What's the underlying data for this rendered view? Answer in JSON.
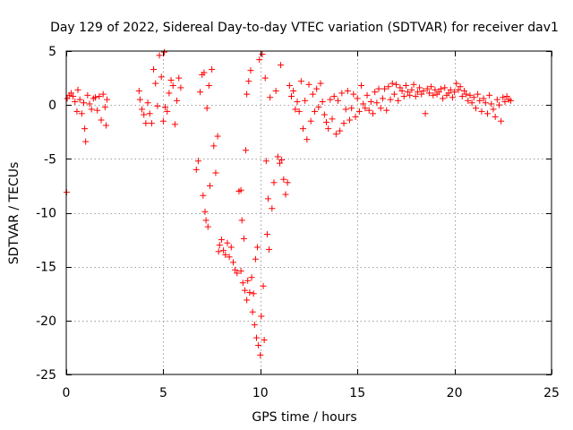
{
  "chart_data": {
    "type": "scatter",
    "title": "Day 129 of 2022, Sidereal Day-to-day VTEC variation (SDTVAR) for receiver dav1",
    "xlabel": "GPS time / hours",
    "ylabel": "SDTVAR / TECUs",
    "xlim": [
      0,
      25
    ],
    "ylim": [
      -25,
      5
    ],
    "xticks": [
      0,
      5,
      10,
      15,
      20,
      25
    ],
    "yticks": [
      5,
      0,
      -5,
      -10,
      -15,
      -20,
      -25
    ],
    "xtick_labels": [
      "0",
      "5",
      "10",
      "15",
      "20",
      "25"
    ],
    "ytick_labels": [
      "5",
      "0",
      "-5",
      "-10",
      "-15",
      "-20",
      "-25"
    ],
    "grid": true,
    "marker": "plus",
    "color": "#ff0000",
    "series": [
      {
        "name": "dav1",
        "points": [
          [
            0.02,
            -8.1
          ],
          [
            0.05,
            0.6
          ],
          [
            0.15,
            0.9
          ],
          [
            0.25,
            1.1
          ],
          [
            0.35,
            0.8
          ],
          [
            0.45,
            0.3
          ],
          [
            0.55,
            -0.6
          ],
          [
            0.6,
            1.4
          ],
          [
            0.7,
            0.5
          ],
          [
            0.8,
            -0.8
          ],
          [
            0.9,
            0.2
          ],
          [
            0.95,
            -2.2
          ],
          [
            1.0,
            -3.4
          ],
          [
            1.1,
            0.9
          ],
          [
            1.2,
            0.1
          ],
          [
            1.3,
            -0.4
          ],
          [
            1.4,
            0.6
          ],
          [
            1.5,
            0.7
          ],
          [
            1.6,
            -0.5
          ],
          [
            1.7,
            0.8
          ],
          [
            1.8,
            -1.4
          ],
          [
            1.9,
            1.0
          ],
          [
            2.0,
            -0.2
          ],
          [
            2.05,
            -1.9
          ],
          [
            2.1,
            0.5
          ],
          [
            3.75,
            1.3
          ],
          [
            3.8,
            0.5
          ],
          [
            3.9,
            -0.4
          ],
          [
            4.0,
            -0.9
          ],
          [
            4.1,
            -1.7
          ],
          [
            4.2,
            0.2
          ],
          [
            4.3,
            -0.8
          ],
          [
            4.4,
            -1.7
          ],
          [
            4.5,
            3.3
          ],
          [
            4.6,
            2.0
          ],
          [
            4.7,
            -0.1
          ],
          [
            4.8,
            4.6
          ],
          [
            4.9,
            2.6
          ],
          [
            5.0,
            -1.5
          ],
          [
            5.05,
            4.9
          ],
          [
            5.1,
            -0.2
          ],
          [
            5.2,
            -0.6
          ],
          [
            5.3,
            1.1
          ],
          [
            5.4,
            2.3
          ],
          [
            5.5,
            1.8
          ],
          [
            5.6,
            -1.8
          ],
          [
            5.7,
            0.4
          ],
          [
            5.8,
            2.5
          ],
          [
            5.9,
            1.6
          ],
          [
            6.7,
            -6.0
          ],
          [
            6.8,
            -5.2
          ],
          [
            6.9,
            1.2
          ],
          [
            7.0,
            2.8
          ],
          [
            7.05,
            -8.4
          ],
          [
            7.1,
            3.0
          ],
          [
            7.15,
            -9.9
          ],
          [
            7.2,
            -10.7
          ],
          [
            7.25,
            -0.3
          ],
          [
            7.3,
            -11.3
          ],
          [
            7.35,
            1.8
          ],
          [
            7.4,
            -7.5
          ],
          [
            7.5,
            3.3
          ],
          [
            7.6,
            -3.8
          ],
          [
            7.7,
            -6.3
          ],
          [
            7.8,
            -2.9
          ],
          [
            7.85,
            -13.6
          ],
          [
            7.9,
            -13.0
          ],
          [
            8.0,
            -12.5
          ],
          [
            8.1,
            -13.5
          ],
          [
            8.2,
            -13.9
          ],
          [
            8.3,
            -12.8
          ],
          [
            8.4,
            -14.1
          ],
          [
            8.5,
            -13.2
          ],
          [
            8.6,
            -14.6
          ],
          [
            8.7,
            -15.3
          ],
          [
            8.8,
            -15.6
          ],
          [
            8.9,
            -8.0
          ],
          [
            9.0,
            -7.9
          ],
          [
            9.0,
            -15.4
          ],
          [
            9.05,
            -10.7
          ],
          [
            9.1,
            -16.5
          ],
          [
            9.15,
            -12.4
          ],
          [
            9.2,
            -17.2
          ],
          [
            9.25,
            -4.2
          ],
          [
            9.3,
            -18.1
          ],
          [
            9.3,
            1.0
          ],
          [
            9.35,
            -16.3
          ],
          [
            9.4,
            2.2
          ],
          [
            9.45,
            -17.4
          ],
          [
            9.5,
            3.2
          ],
          [
            9.55,
            -16.0
          ],
          [
            9.6,
            -19.2
          ],
          [
            9.65,
            -17.5
          ],
          [
            9.7,
            -20.4
          ],
          [
            9.75,
            -14.3
          ],
          [
            9.8,
            -21.6
          ],
          [
            9.85,
            -13.2
          ],
          [
            9.9,
            -22.3
          ],
          [
            9.95,
            4.2
          ],
          [
            10.0,
            -23.2
          ],
          [
            10.05,
            -19.6
          ],
          [
            10.1,
            4.7
          ],
          [
            10.15,
            -16.8
          ],
          [
            10.2,
            -21.8
          ],
          [
            10.25,
            2.5
          ],
          [
            10.3,
            -5.2
          ],
          [
            10.35,
            -12.0
          ],
          [
            10.4,
            -8.7
          ],
          [
            10.45,
            -13.4
          ],
          [
            10.5,
            0.7
          ],
          [
            10.6,
            -9.6
          ],
          [
            10.7,
            -7.2
          ],
          [
            10.8,
            1.3
          ],
          [
            10.9,
            -4.8
          ],
          [
            11.0,
            -5.4
          ],
          [
            11.05,
            3.7
          ],
          [
            11.1,
            -5.1
          ],
          [
            11.2,
            -6.9
          ],
          [
            11.3,
            -8.3
          ],
          [
            11.4,
            -7.2
          ],
          [
            11.5,
            1.8
          ],
          [
            11.6,
            0.8
          ],
          [
            11.7,
            1.3
          ],
          [
            11.8,
            -0.4
          ],
          [
            11.9,
            0.3
          ],
          [
            12.0,
            -0.6
          ],
          [
            12.1,
            2.2
          ],
          [
            12.2,
            -2.2
          ],
          [
            12.3,
            0.4
          ],
          [
            12.4,
            -3.2
          ],
          [
            12.5,
            1.9
          ],
          [
            12.6,
            -1.5
          ],
          [
            12.7,
            1.0
          ],
          [
            12.8,
            -0.6
          ],
          [
            12.9,
            1.5
          ],
          [
            13.0,
            -0.2
          ],
          [
            13.1,
            2.0
          ],
          [
            13.2,
            0.3
          ],
          [
            13.3,
            -0.9
          ],
          [
            13.4,
            -1.6
          ],
          [
            13.5,
            -2.2
          ],
          [
            13.6,
            0.5
          ],
          [
            13.7,
            -1.3
          ],
          [
            13.8,
            0.8
          ],
          [
            13.9,
            -2.7
          ],
          [
            14.0,
            0.4
          ],
          [
            14.1,
            -2.4
          ],
          [
            14.2,
            1.1
          ],
          [
            14.3,
            -1.7
          ],
          [
            14.4,
            -0.4
          ],
          [
            14.5,
            1.3
          ],
          [
            14.6,
            -1.4
          ],
          [
            14.7,
            -0.3
          ],
          [
            14.8,
            1.0
          ],
          [
            14.9,
            -1.1
          ],
          [
            15.0,
            0.6
          ],
          [
            15.1,
            -0.6
          ],
          [
            15.2,
            1.8
          ],
          [
            15.3,
            0.1
          ],
          [
            15.4,
            -0.3
          ],
          [
            15.5,
            0.9
          ],
          [
            15.6,
            -0.5
          ],
          [
            15.7,
            0.3
          ],
          [
            15.8,
            -0.8
          ],
          [
            15.9,
            1.2
          ],
          [
            16.0,
            0.2
          ],
          [
            16.1,
            1.5
          ],
          [
            16.2,
            -0.3
          ],
          [
            16.3,
            0.6
          ],
          [
            16.4,
            1.5
          ],
          [
            16.5,
            -0.5
          ],
          [
            16.6,
            1.7
          ],
          [
            16.7,
            0.5
          ],
          [
            16.8,
            2.0
          ],
          [
            16.9,
            1.0
          ],
          [
            17.0,
            1.9
          ],
          [
            17.1,
            0.4
          ],
          [
            17.2,
            1.6
          ],
          [
            17.3,
            1.3
          ],
          [
            17.4,
            0.8
          ],
          [
            17.5,
            1.8
          ],
          [
            17.6,
            1.2
          ],
          [
            17.7,
            0.9
          ],
          [
            17.8,
            1.4
          ],
          [
            17.9,
            1.9
          ],
          [
            18.0,
            0.8
          ],
          [
            18.1,
            1.2
          ],
          [
            18.2,
            1.6
          ],
          [
            18.3,
            1.0
          ],
          [
            18.4,
            1.3
          ],
          [
            18.5,
            -0.8
          ],
          [
            18.6,
            1.5
          ],
          [
            18.7,
            1.1
          ],
          [
            18.8,
            1.7
          ],
          [
            18.9,
            0.9
          ],
          [
            19.0,
            1.4
          ],
          [
            19.1,
            1.0
          ],
          [
            19.2,
            1.2
          ],
          [
            19.3,
            1.5
          ],
          [
            19.4,
            0.6
          ],
          [
            19.5,
            1.6
          ],
          [
            19.6,
            0.9
          ],
          [
            19.7,
            1.1
          ],
          [
            19.8,
            1.4
          ],
          [
            19.9,
            0.7
          ],
          [
            20.0,
            1.2
          ],
          [
            20.1,
            2.0
          ],
          [
            20.2,
            1.4
          ],
          [
            20.3,
            1.7
          ],
          [
            20.4,
            0.8
          ],
          [
            20.5,
            1.3
          ],
          [
            20.6,
            1.0
          ],
          [
            20.7,
            0.4
          ],
          [
            20.8,
            0.9
          ],
          [
            20.9,
            0.2
          ],
          [
            21.0,
            0.7
          ],
          [
            21.1,
            -0.3
          ],
          [
            21.2,
            1.0
          ],
          [
            21.3,
            0.4
          ],
          [
            21.4,
            -0.6
          ],
          [
            21.5,
            0.6
          ],
          [
            21.6,
            0.2
          ],
          [
            21.7,
            -0.8
          ],
          [
            21.8,
            0.9
          ],
          [
            21.9,
            0.1
          ],
          [
            22.0,
            -0.4
          ],
          [
            22.1,
            -1.1
          ],
          [
            22.2,
            0.5
          ],
          [
            22.3,
            0.0
          ],
          [
            22.4,
            -1.5
          ],
          [
            22.5,
            0.7
          ],
          [
            22.6,
            0.3
          ],
          [
            22.7,
            0.8
          ],
          [
            22.8,
            0.5
          ],
          [
            22.9,
            0.4
          ]
        ]
      }
    ]
  }
}
